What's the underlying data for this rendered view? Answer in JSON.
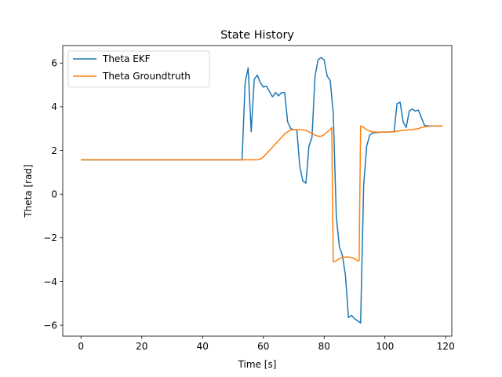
{
  "chart_data": {
    "type": "line",
    "title": "State History",
    "xlabel": "Time [s]",
    "ylabel": "Theta [rad]",
    "xlim": [
      -6,
      122
    ],
    "ylim": [
      -6.5,
      6.8
    ],
    "xticks": [
      0,
      20,
      40,
      60,
      80,
      100,
      120
    ],
    "yticks": [
      -6,
      -4,
      -2,
      0,
      2,
      4,
      6
    ],
    "xtick_labels": [
      "0",
      "20",
      "40",
      "60",
      "80",
      "100",
      "120"
    ],
    "ytick_labels": [
      "−6",
      "−4",
      "−2",
      "0",
      "2",
      "4",
      "6"
    ],
    "grid": false,
    "legend_position": "top-left",
    "series": [
      {
        "name": "Theta EKF",
        "color": "#1f77b4",
        "x": [
          0,
          53,
          54,
          55,
          56,
          57,
          58,
          59,
          60,
          61,
          62,
          63,
          64,
          65,
          66,
          67,
          68,
          69,
          70,
          71,
          72,
          73,
          74,
          75,
          76,
          77,
          78,
          79,
          80,
          81,
          82,
          83,
          84,
          85,
          86,
          87,
          88,
          89,
          90,
          91,
          92,
          93,
          94,
          95,
          96,
          97,
          98,
          99,
          100,
          101,
          102,
          103,
          104,
          105,
          106,
          107,
          108,
          109,
          110,
          111,
          112,
          113,
          114,
          115,
          116,
          117,
          118,
          119
        ],
        "y": [
          1.57,
          1.57,
          5.1,
          5.78,
          2.85,
          5.25,
          5.45,
          5.1,
          4.9,
          4.95,
          4.7,
          4.45,
          4.65,
          4.5,
          4.65,
          4.65,
          3.3,
          3.0,
          2.95,
          2.95,
          1.25,
          0.6,
          0.5,
          2.2,
          2.6,
          5.4,
          6.15,
          6.25,
          6.15,
          5.4,
          5.2,
          3.7,
          -1.0,
          -2.4,
          -2.8,
          -3.7,
          -5.65,
          -5.55,
          -5.7,
          -5.8,
          -5.9,
          0.4,
          2.2,
          2.7,
          2.8,
          2.82,
          2.83,
          2.84,
          2.84,
          2.84,
          2.85,
          2.85,
          4.15,
          4.2,
          3.3,
          3.05,
          3.8,
          3.9,
          3.8,
          3.85,
          3.5,
          3.15,
          3.13,
          3.12,
          3.12,
          3.12,
          3.12,
          3.12
        ]
      },
      {
        "name": "Theta Groundtruth",
        "color": "#ff7f0e",
        "x": [
          0,
          58,
          59,
          60,
          61,
          62,
          63,
          64,
          65,
          66,
          67,
          68,
          69,
          70,
          71,
          72,
          73,
          74,
          75,
          76,
          77,
          78,
          79,
          80,
          81,
          82,
          82.5,
          83,
          84,
          85,
          86,
          87,
          88,
          89,
          90,
          91,
          91.5,
          92,
          93,
          94,
          95,
          96,
          97,
          98,
          99,
          100,
          101,
          102,
          103,
          104,
          105,
          106,
          107,
          108,
          109,
          110,
          111,
          112,
          113,
          114,
          115,
          116,
          117,
          118,
          119
        ],
        "y": [
          1.57,
          1.57,
          1.6,
          1.7,
          1.85,
          2.0,
          2.15,
          2.3,
          2.45,
          2.6,
          2.75,
          2.85,
          2.93,
          2.95,
          2.95,
          2.95,
          2.94,
          2.92,
          2.85,
          2.78,
          2.7,
          2.65,
          2.65,
          2.72,
          2.85,
          2.95,
          3.05,
          -3.1,
          -3.05,
          -2.95,
          -2.9,
          -2.88,
          -2.88,
          -2.9,
          -2.95,
          -3.05,
          -3.05,
          3.12,
          3.05,
          2.95,
          2.88,
          2.85,
          2.84,
          2.84,
          2.84,
          2.84,
          2.84,
          2.85,
          2.86,
          2.88,
          2.9,
          2.92,
          2.93,
          2.95,
          2.96,
          2.98,
          3.0,
          3.05,
          3.08,
          3.1,
          3.11,
          3.12,
          3.12,
          3.12,
          3.12
        ]
      }
    ]
  }
}
